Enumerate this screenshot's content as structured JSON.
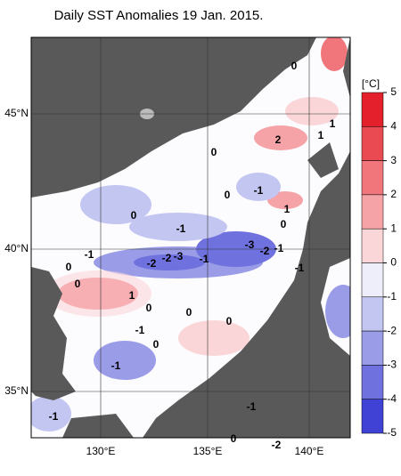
{
  "title": "Daily SST Anomalies 19 Jan. 2015.",
  "lat_labels": [
    "45°N",
    "40°N",
    "35°N"
  ],
  "lon_labels": [
    "130°E",
    "135°E",
    "140°E"
  ],
  "colorbar": {
    "unit": "[°C]",
    "ticks": [
      5,
      4,
      3,
      2,
      1,
      0,
      -1,
      -2,
      -3,
      -4,
      -5
    ],
    "colors": [
      "#e3202b",
      "#ea4a52",
      "#f0767c",
      "#f5a3a6",
      "#fbd6d8",
      "#eeeefb",
      "#c4c6f2",
      "#9a9ce8",
      "#6f71de",
      "#3f42d4"
    ]
  },
  "contour_labels": [
    0,
    1,
    1,
    2,
    0,
    -1,
    0,
    1,
    0,
    -1,
    0,
    -3,
    -2,
    -1,
    -1,
    -2,
    -2,
    -3,
    -1,
    -1,
    0,
    0,
    1,
    0,
    0,
    0,
    -1,
    0,
    -1,
    -1,
    -1,
    0,
    -2
  ]
}
